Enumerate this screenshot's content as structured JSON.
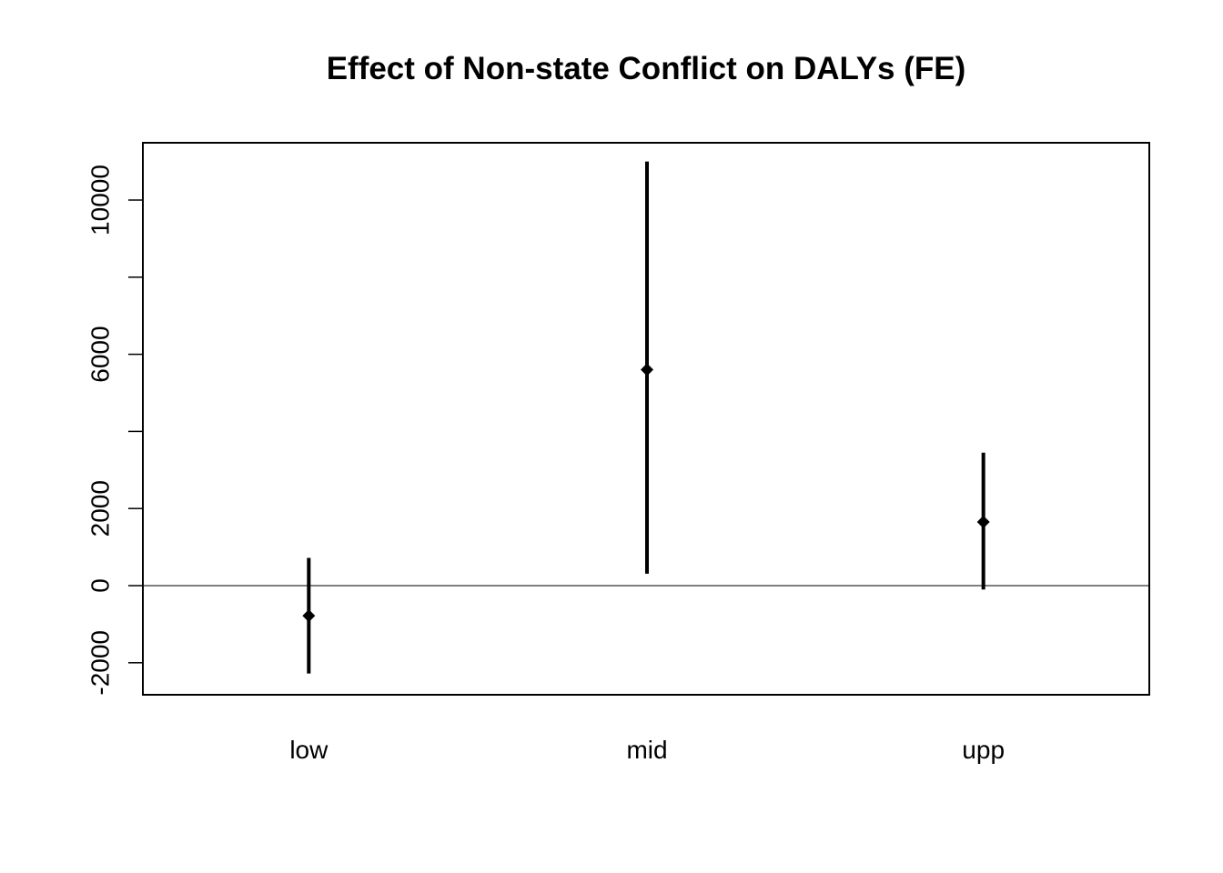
{
  "chart_data": {
    "type": "errorbar",
    "title": "Effect of Non-state Conflict on DALYs (FE)",
    "xlabel": "",
    "ylabel": "",
    "categories": [
      "low",
      "mid",
      "upp"
    ],
    "estimates": [
      -780,
      5600,
      1650
    ],
    "lower": [
      -2280,
      310,
      -100
    ],
    "upper": [
      720,
      11000,
      3450
    ],
    "ylim": [
      -2800,
      11500
    ],
    "yticks": [
      -2000,
      0,
      2000,
      4000,
      6000,
      8000,
      10000
    ],
    "ytick_labels": [
      "-2000",
      "0",
      "2000",
      "",
      "6000",
      "",
      "10000"
    ],
    "reference_line": 0,
    "grid": false,
    "colors": {
      "marks": "#000000",
      "axis": "#000000",
      "background": "#ffffff"
    }
  }
}
